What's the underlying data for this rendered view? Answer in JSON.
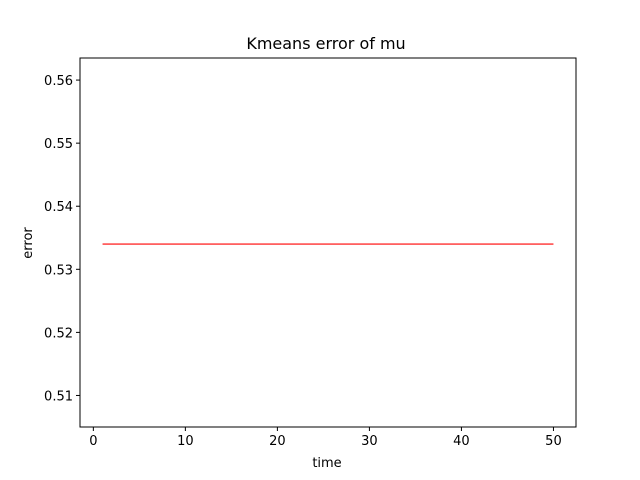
{
  "chart_data": {
    "type": "line",
    "title": "Kmeans error of mu",
    "xlabel": "time",
    "ylabel": "error",
    "xlim": [
      -1.45,
      52.45
    ],
    "ylim": [
      0.505,
      0.5635
    ],
    "xticks": [
      0,
      10,
      20,
      30,
      40,
      50
    ],
    "xtick_labels": [
      "0",
      "10",
      "20",
      "30",
      "40",
      "50"
    ],
    "yticks": [
      0.51,
      0.52,
      0.53,
      0.54,
      0.55,
      0.56
    ],
    "ytick_labels": [
      "0.51",
      "0.52",
      "0.53",
      "0.54",
      "0.55",
      "0.56"
    ],
    "grid": false,
    "series": [
      {
        "color": "#ff0000",
        "x": [
          1,
          50
        ],
        "y": [
          0.534,
          0.534
        ]
      }
    ]
  }
}
